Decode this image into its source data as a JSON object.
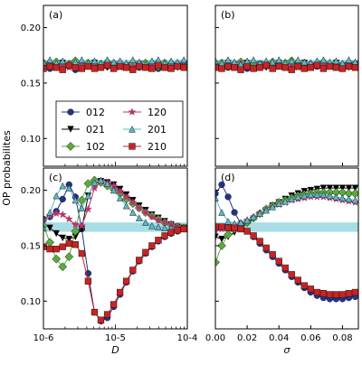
{
  "figure": {
    "ylabel": "OP probabilites",
    "panel_labels": [
      "(a)",
      "(b)",
      "(c)",
      "(d)"
    ],
    "band": {
      "lo": 0.1625,
      "hi": 0.171,
      "color": "#a8dde6"
    }
  },
  "legend": {
    "placement": "inside panel (a), lower half",
    "entries": [
      "012",
      "021",
      "102",
      "120",
      "201",
      "210"
    ]
  },
  "chart_data": [
    {
      "type": "line",
      "panel": "(a)",
      "xscale": "log",
      "xlim": [
        1e-06,
        0.0001
      ],
      "ylim": [
        0.075,
        0.22
      ],
      "yticks": [
        0.1,
        0.15,
        0.2
      ],
      "x": [
        1e-06,
        1.23e-06,
        1.51e-06,
        1.85e-06,
        2.27e-06,
        2.78e-06,
        3.41e-06,
        4.18e-06,
        5.13e-06,
        6.29e-06,
        7.72e-06,
        9.47e-06,
        1.16e-05,
        1.42e-05,
        1.75e-05,
        2.14e-05,
        2.63e-05,
        3.22e-05,
        3.95e-05,
        4.85e-05,
        5.95e-05,
        7.3e-05,
        8.95e-05
      ],
      "series": [
        {
          "name": "012",
          "values": [
            0.165,
            0.163,
            0.167,
            0.164,
            0.166,
            0.162,
            0.165,
            0.167,
            0.164,
            0.166,
            0.165,
            0.163,
            0.166,
            0.165,
            0.167,
            0.164,
            0.166,
            0.165,
            0.163,
            0.166,
            0.164,
            0.165,
            0.166
          ]
        },
        {
          "name": "021",
          "values": [
            0.167,
            0.165,
            0.164,
            0.168,
            0.165,
            0.167,
            0.164,
            0.166,
            0.168,
            0.165,
            0.164,
            0.167,
            0.165,
            0.166,
            0.164,
            0.167,
            0.165,
            0.164,
            0.167,
            0.165,
            0.166,
            0.164,
            0.167
          ]
        },
        {
          "name": "102",
          "values": [
            0.168,
            0.166,
            0.169,
            0.165,
            0.167,
            0.17,
            0.166,
            0.168,
            0.165,
            0.167,
            0.169,
            0.166,
            0.168,
            0.165,
            0.167,
            0.166,
            0.168,
            0.167,
            0.165,
            0.168,
            0.166,
            0.167,
            0.165
          ]
        },
        {
          "name": "120",
          "values": [
            0.166,
            0.168,
            0.165,
            0.167,
            0.164,
            0.166,
            0.168,
            0.165,
            0.167,
            0.164,
            0.166,
            0.168,
            0.164,
            0.167,
            0.165,
            0.168,
            0.164,
            0.166,
            0.168,
            0.164,
            0.167,
            0.165,
            0.166
          ]
        },
        {
          "name": "201",
          "values": [
            0.169,
            0.171,
            0.168,
            0.17,
            0.167,
            0.169,
            0.171,
            0.168,
            0.17,
            0.168,
            0.171,
            0.169,
            0.17,
            0.168,
            0.171,
            0.169,
            0.167,
            0.17,
            0.171,
            0.168,
            0.17,
            0.169,
            0.171
          ]
        },
        {
          "name": "210",
          "values": [
            0.163,
            0.165,
            0.164,
            0.162,
            0.166,
            0.164,
            0.163,
            0.165,
            0.163,
            0.164,
            0.166,
            0.163,
            0.165,
            0.164,
            0.162,
            0.165,
            0.164,
            0.163,
            0.166,
            0.164,
            0.163,
            0.165,
            0.164
          ]
        }
      ]
    },
    {
      "type": "line",
      "panel": "(b)",
      "xlim": [
        0.0,
        0.09
      ],
      "ylim": [
        0.075,
        0.22
      ],
      "x": [
        0.0,
        0.004,
        0.008,
        0.012,
        0.016,
        0.02,
        0.024,
        0.028,
        0.032,
        0.036,
        0.04,
        0.044,
        0.048,
        0.052,
        0.056,
        0.06,
        0.064,
        0.068,
        0.072,
        0.076,
        0.08,
        0.084,
        0.088
      ],
      "series": [
        {
          "name": "012",
          "values": [
            0.165,
            0.166,
            0.164,
            0.167,
            0.165,
            0.163,
            0.166,
            0.165,
            0.167,
            0.164,
            0.166,
            0.165,
            0.163,
            0.166,
            0.164,
            0.167,
            0.165,
            0.164,
            0.166,
            0.165,
            0.163,
            0.166,
            0.165
          ]
        },
        {
          "name": "021",
          "values": [
            0.167,
            0.165,
            0.168,
            0.164,
            0.166,
            0.168,
            0.165,
            0.167,
            0.164,
            0.166,
            0.168,
            0.165,
            0.167,
            0.165,
            0.168,
            0.164,
            0.166,
            0.167,
            0.165,
            0.168,
            0.166,
            0.164,
            0.167
          ]
        },
        {
          "name": "102",
          "values": [
            0.166,
            0.168,
            0.165,
            0.167,
            0.169,
            0.166,
            0.168,
            0.165,
            0.167,
            0.169,
            0.166,
            0.168,
            0.17,
            0.166,
            0.168,
            0.165,
            0.167,
            0.169,
            0.166,
            0.168,
            0.165,
            0.167,
            0.166
          ]
        },
        {
          "name": "120",
          "values": [
            0.168,
            0.166,
            0.167,
            0.165,
            0.168,
            0.166,
            0.164,
            0.167,
            0.165,
            0.168,
            0.166,
            0.165,
            0.167,
            0.164,
            0.166,
            0.168,
            0.165,
            0.167,
            0.166,
            0.164,
            0.167,
            0.165,
            0.168
          ]
        },
        {
          "name": "201",
          "values": [
            0.17,
            0.168,
            0.171,
            0.169,
            0.167,
            0.17,
            0.171,
            0.168,
            0.17,
            0.169,
            0.171,
            0.168,
            0.17,
            0.171,
            0.169,
            0.168,
            0.17,
            0.171,
            0.169,
            0.17,
            0.168,
            0.171,
            0.169
          ]
        },
        {
          "name": "210",
          "values": [
            0.164,
            0.163,
            0.165,
            0.164,
            0.162,
            0.165,
            0.163,
            0.164,
            0.166,
            0.163,
            0.165,
            0.164,
            0.162,
            0.165,
            0.163,
            0.164,
            0.166,
            0.163,
            0.165,
            0.164,
            0.163,
            0.165,
            0.164
          ]
        }
      ]
    },
    {
      "type": "line",
      "panel": "(c)",
      "xscale": "log",
      "xlim": [
        1e-06,
        0.0001
      ],
      "ylim": [
        0.075,
        0.22
      ],
      "yticks": [
        0.1,
        0.15,
        0.2
      ],
      "xlabel": "D",
      "xticklabels": [
        "10-6",
        "10-5",
        "10-4"
      ],
      "x": [
        1e-06,
        1.23e-06,
        1.51e-06,
        1.85e-06,
        2.27e-06,
        2.78e-06,
        3.41e-06,
        4.18e-06,
        5.13e-06,
        6.29e-06,
        7.72e-06,
        9.47e-06,
        1.16e-05,
        1.42e-05,
        1.75e-05,
        2.14e-05,
        2.63e-05,
        3.22e-05,
        3.95e-05,
        4.85e-05,
        5.95e-05,
        7.3e-05,
        8.95e-05
      ],
      "series": [
        {
          "name": "012",
          "values": [
            0.174,
            0.176,
            0.181,
            0.192,
            0.205,
            0.194,
            0.165,
            0.125,
            0.09,
            0.082,
            0.085,
            0.095,
            0.106,
            0.117,
            0.127,
            0.136,
            0.143,
            0.149,
            0.154,
            0.158,
            0.161,
            0.163,
            0.165
          ]
        },
        {
          "name": "021",
          "values": [
            0.17,
            0.166,
            0.161,
            0.157,
            0.156,
            0.158,
            0.165,
            0.195,
            0.207,
            0.208,
            0.207,
            0.205,
            0.201,
            0.196,
            0.191,
            0.186,
            0.182,
            0.178,
            0.175,
            0.172,
            0.169,
            0.167,
            0.166
          ]
        },
        {
          "name": "102",
          "values": [
            0.168,
            0.153,
            0.138,
            0.131,
            0.14,
            0.163,
            0.191,
            0.206,
            0.209,
            0.207,
            0.204,
            0.201,
            0.197,
            0.192,
            0.188,
            0.184,
            0.18,
            0.177,
            0.174,
            0.171,
            0.169,
            0.167,
            0.166
          ]
        },
        {
          "name": "120",
          "values": [
            0.173,
            0.177,
            0.179,
            0.178,
            0.174,
            0.169,
            0.168,
            0.183,
            0.202,
            0.208,
            0.207,
            0.204,
            0.199,
            0.194,
            0.189,
            0.184,
            0.18,
            0.176,
            0.173,
            0.171,
            0.169,
            0.167,
            0.166
          ]
        },
        {
          "name": "201",
          "values": [
            0.166,
            0.18,
            0.195,
            0.204,
            0.202,
            0.191,
            0.184,
            0.195,
            0.207,
            0.209,
            0.206,
            0.2,
            0.193,
            0.186,
            0.18,
            0.175,
            0.171,
            0.168,
            0.167,
            0.166,
            0.166,
            0.166,
            0.166
          ]
        },
        {
          "name": "210",
          "values": [
            0.149,
            0.147,
            0.147,
            0.149,
            0.152,
            0.151,
            0.143,
            0.118,
            0.09,
            0.083,
            0.088,
            0.097,
            0.108,
            0.118,
            0.128,
            0.137,
            0.144,
            0.15,
            0.155,
            0.159,
            0.162,
            0.164,
            0.165
          ]
        }
      ]
    },
    {
      "type": "line",
      "panel": "(d)",
      "xlim": [
        0.0,
        0.09
      ],
      "ylim": [
        0.075,
        0.22
      ],
      "xlabel": "σ",
      "xticks": [
        0.0,
        0.02,
        0.04,
        0.06,
        0.08
      ],
      "x": [
        0.0,
        0.004,
        0.008,
        0.012,
        0.016,
        0.02,
        0.024,
        0.028,
        0.032,
        0.036,
        0.04,
        0.044,
        0.048,
        0.052,
        0.056,
        0.06,
        0.064,
        0.068,
        0.072,
        0.076,
        0.08,
        0.084,
        0.088
      ],
      "series": [
        {
          "name": "012",
          "values": [
            0.197,
            0.205,
            0.194,
            0.18,
            0.17,
            0.163,
            0.158,
            0.152,
            0.146,
            0.14,
            0.134,
            0.128,
            0.122,
            0.117,
            0.112,
            0.108,
            0.105,
            0.103,
            0.102,
            0.102,
            0.102,
            0.103,
            0.104
          ]
        },
        {
          "name": "021",
          "values": [
            0.158,
            0.156,
            0.158,
            0.162,
            0.166,
            0.17,
            0.174,
            0.178,
            0.182,
            0.186,
            0.189,
            0.192,
            0.195,
            0.197,
            0.199,
            0.2,
            0.201,
            0.202,
            0.202,
            0.202,
            0.202,
            0.202,
            0.202
          ]
        },
        {
          "name": "102",
          "values": [
            0.135,
            0.15,
            0.16,
            0.165,
            0.168,
            0.171,
            0.175,
            0.179,
            0.183,
            0.186,
            0.189,
            0.191,
            0.193,
            0.195,
            0.196,
            0.197,
            0.198,
            0.198,
            0.198,
            0.198,
            0.198,
            0.197,
            0.197
          ]
        },
        {
          "name": "120",
          "values": [
            0.163,
            0.165,
            0.166,
            0.168,
            0.17,
            0.173,
            0.176,
            0.179,
            0.182,
            0.185,
            0.187,
            0.189,
            0.191,
            0.192,
            0.193,
            0.194,
            0.194,
            0.194,
            0.193,
            0.192,
            0.191,
            0.19,
            0.189
          ]
        },
        {
          "name": "201",
          "values": [
            0.193,
            0.18,
            0.172,
            0.17,
            0.171,
            0.173,
            0.176,
            0.179,
            0.182,
            0.185,
            0.188,
            0.19,
            0.192,
            0.194,
            0.195,
            0.196,
            0.196,
            0.196,
            0.195,
            0.194,
            0.193,
            0.192,
            0.191
          ]
        },
        {
          "name": "210",
          "values": [
            0.167,
            0.167,
            0.166,
            0.166,
            0.165,
            0.163,
            0.159,
            0.154,
            0.148,
            0.142,
            0.136,
            0.13,
            0.124,
            0.119,
            0.114,
            0.111,
            0.108,
            0.107,
            0.106,
            0.106,
            0.106,
            0.107,
            0.108
          ]
        }
      ]
    }
  ],
  "styles": {
    "012": {
      "color": "#22338c",
      "marker": "circle"
    },
    "021": {
      "color": "#000000",
      "marker": "triangle-down"
    },
    "102": {
      "color": "#5aab3c",
      "marker": "diamond"
    },
    "120": {
      "color": "#b8336a",
      "marker": "star"
    },
    "201": {
      "color": "#5bb8c9",
      "marker": "triangle-up"
    },
    "210": {
      "color": "#cc2222",
      "marker": "square"
    }
  }
}
